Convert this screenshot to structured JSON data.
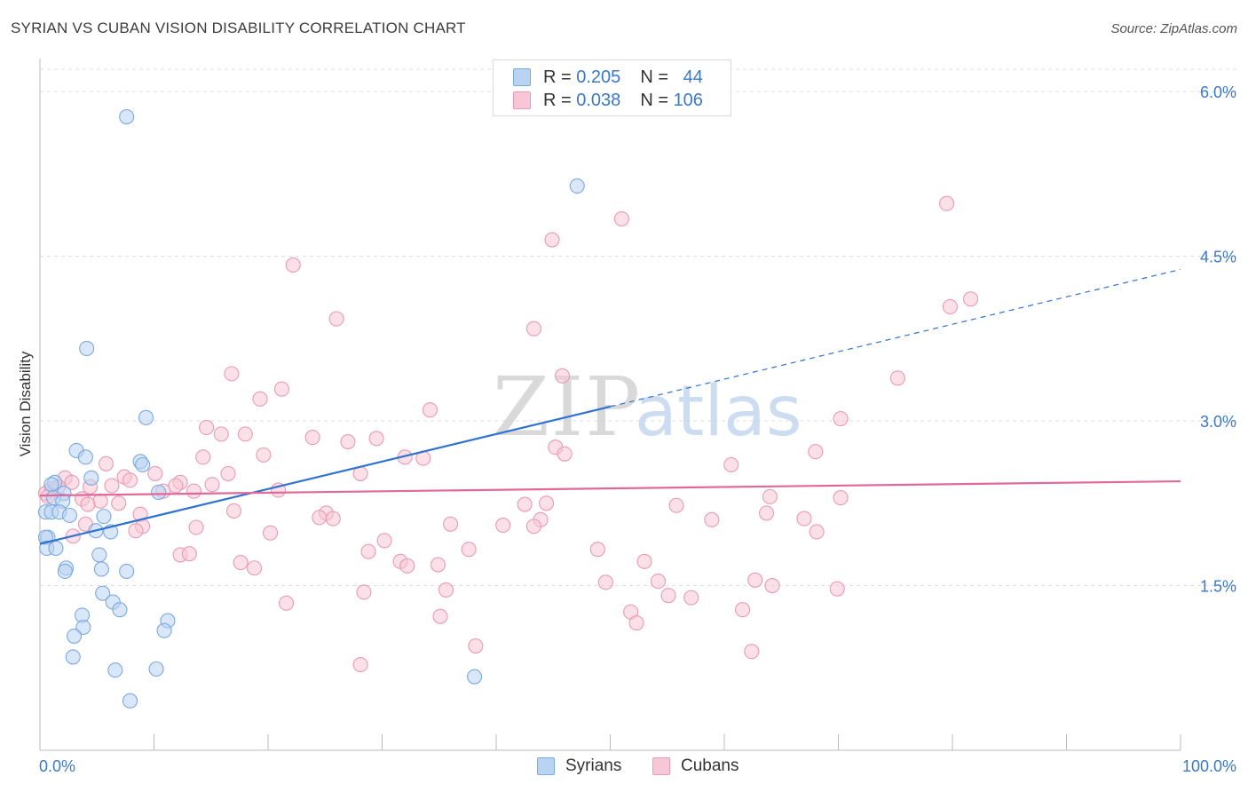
{
  "title": "SYRIAN VS CUBAN VISION DISABILITY CORRELATION CHART",
  "source": "Source: ZipAtlas.com",
  "watermark": {
    "zip": "ZIP",
    "atlas": "atlas"
  },
  "legend": {
    "rows": [
      {
        "r_label": "R =",
        "r_value": "0.205",
        "n_label": "N =",
        "n_value": "44"
      },
      {
        "r_label": "R =",
        "r_value": "0.038",
        "n_label": "N =",
        "n_value": "106"
      }
    ]
  },
  "bottom_legend": {
    "syrians": "Syrians",
    "cubans": "Cubans"
  },
  "colors": {
    "syrians_fill": "#b9d3f3",
    "syrians_stroke": "#7aa9e0",
    "syrians_line": "#2f73d0",
    "cubans_fill": "#f8c6d6",
    "cubans_stroke": "#e99ab5",
    "cubans_line": "#e0699a",
    "tick_label": "#3a78c9",
    "grid": "#dddddd"
  },
  "chart_data": {
    "type": "scatter",
    "title": "SYRIAN VS CUBAN VISION DISABILITY CORRELATION CHART",
    "xlabel": "",
    "ylabel": "Vision Disability",
    "xlim": [
      0,
      100
    ],
    "ylim": [
      0,
      6.3
    ],
    "x_tick_labels": {
      "left": "0.0%",
      "right": "100.0%"
    },
    "y_ticks": [
      {
        "value": 1.5,
        "label": "1.5%"
      },
      {
        "value": 3.0,
        "label": "3.0%"
      },
      {
        "value": 4.5,
        "label": "4.5%"
      },
      {
        "value": 6.0,
        "label": "6.0%"
      }
    ],
    "grid": true,
    "series": [
      {
        "name": "Syrians",
        "r": 0.205,
        "n": 44,
        "trend": {
          "x0": 0,
          "y0": 1.88,
          "x_solid_end": 50,
          "x1": 100,
          "y1": 4.38
        },
        "points": [
          [
            7.6,
            5.77
          ],
          [
            47.1,
            5.14
          ],
          [
            4.1,
            3.66
          ],
          [
            9.3,
            3.03
          ],
          [
            3.2,
            2.73
          ],
          [
            4.0,
            2.67
          ],
          [
            8.8,
            2.63
          ],
          [
            9.0,
            2.6
          ],
          [
            4.5,
            2.48
          ],
          [
            1.3,
            2.44
          ],
          [
            1.0,
            2.42
          ],
          [
            2.1,
            2.34
          ],
          [
            1.2,
            2.3
          ],
          [
            2.0,
            2.27
          ],
          [
            10.4,
            2.35
          ],
          [
            0.5,
            2.17
          ],
          [
            1.0,
            2.17
          ],
          [
            1.7,
            2.17
          ],
          [
            2.6,
            2.14
          ],
          [
            5.6,
            2.13
          ],
          [
            4.9,
            2.0
          ],
          [
            6.2,
            1.99
          ],
          [
            0.7,
            1.94
          ],
          [
            0.5,
            1.94
          ],
          [
            0.6,
            1.84
          ],
          [
            1.4,
            1.84
          ],
          [
            5.2,
            1.78
          ],
          [
            2.3,
            1.66
          ],
          [
            2.2,
            1.63
          ],
          [
            5.4,
            1.65
          ],
          [
            7.6,
            1.63
          ],
          [
            5.5,
            1.43
          ],
          [
            6.4,
            1.35
          ],
          [
            7.0,
            1.28
          ],
          [
            3.7,
            1.23
          ],
          [
            11.2,
            1.18
          ],
          [
            3.8,
            1.12
          ],
          [
            10.9,
            1.09
          ],
          [
            3.0,
            1.04
          ],
          [
            2.9,
            0.85
          ],
          [
            6.6,
            0.73
          ],
          [
            10.2,
            0.74
          ],
          [
            38.1,
            0.67
          ],
          [
            7.9,
            0.45
          ]
        ]
      },
      {
        "name": "Cubans",
        "r": 0.038,
        "n": 106,
        "trend": {
          "x0": 0,
          "y0": 2.32,
          "x1": 100,
          "y1": 2.45
        },
        "points": [
          [
            79.5,
            4.98
          ],
          [
            51.0,
            4.84
          ],
          [
            44.9,
            4.65
          ],
          [
            22.2,
            4.42
          ],
          [
            81.6,
            4.11
          ],
          [
            79.8,
            4.04
          ],
          [
            26.0,
            3.93
          ],
          [
            43.3,
            3.84
          ],
          [
            16.8,
            3.43
          ],
          [
            45.8,
            3.41
          ],
          [
            75.2,
            3.39
          ],
          [
            21.2,
            3.29
          ],
          [
            19.3,
            3.2
          ],
          [
            34.2,
            3.1
          ],
          [
            70.2,
            3.02
          ],
          [
            15.9,
            2.88
          ],
          [
            18.0,
            2.88
          ],
          [
            14.6,
            2.94
          ],
          [
            23.9,
            2.85
          ],
          [
            27.0,
            2.81
          ],
          [
            29.5,
            2.84
          ],
          [
            45.2,
            2.76
          ],
          [
            46.0,
            2.7
          ],
          [
            68.0,
            2.72
          ],
          [
            19.6,
            2.69
          ],
          [
            32.0,
            2.67
          ],
          [
            33.6,
            2.66
          ],
          [
            14.3,
            2.67
          ],
          [
            5.8,
            2.61
          ],
          [
            6.3,
            2.41
          ],
          [
            60.6,
            2.6
          ],
          [
            28.1,
            2.52
          ],
          [
            16.5,
            2.52
          ],
          [
            10.1,
            2.52
          ],
          [
            7.4,
            2.49
          ],
          [
            2.2,
            2.48
          ],
          [
            2.8,
            2.44
          ],
          [
            7.9,
            2.46
          ],
          [
            12.3,
            2.44
          ],
          [
            15.1,
            2.42
          ],
          [
            11.9,
            2.41
          ],
          [
            4.4,
            2.4
          ],
          [
            3.7,
            2.29
          ],
          [
            1.0,
            2.38
          ],
          [
            0.5,
            2.34
          ],
          [
            0.7,
            2.31
          ],
          [
            1.6,
            2.4
          ],
          [
            20.9,
            2.37
          ],
          [
            13.5,
            2.36
          ],
          [
            10.8,
            2.36
          ],
          [
            5.3,
            2.27
          ],
          [
            6.9,
            2.25
          ],
          [
            4.2,
            2.24
          ],
          [
            44.4,
            2.25
          ],
          [
            42.5,
            2.24
          ],
          [
            55.8,
            2.23
          ],
          [
            64.0,
            2.31
          ],
          [
            70.2,
            2.3
          ],
          [
            17.0,
            2.18
          ],
          [
            8.8,
            2.15
          ],
          [
            25.1,
            2.16
          ],
          [
            24.5,
            2.12
          ],
          [
            25.7,
            2.11
          ],
          [
            36.0,
            2.06
          ],
          [
            40.6,
            2.05
          ],
          [
            43.9,
            2.1
          ],
          [
            43.3,
            2.04
          ],
          [
            58.9,
            2.1
          ],
          [
            63.7,
            2.16
          ],
          [
            67.0,
            2.11
          ],
          [
            9.0,
            2.04
          ],
          [
            8.4,
            2.0
          ],
          [
            13.7,
            2.03
          ],
          [
            20.2,
            1.98
          ],
          [
            30.2,
            1.91
          ],
          [
            28.8,
            1.81
          ],
          [
            37.6,
            1.83
          ],
          [
            48.9,
            1.83
          ],
          [
            68.1,
            1.99
          ],
          [
            12.3,
            1.78
          ],
          [
            13.1,
            1.79
          ],
          [
            17.6,
            1.71
          ],
          [
            18.8,
            1.66
          ],
          [
            31.6,
            1.72
          ],
          [
            32.2,
            1.68
          ],
          [
            34.9,
            1.69
          ],
          [
            53.0,
            1.72
          ],
          [
            49.6,
            1.53
          ],
          [
            54.2,
            1.54
          ],
          [
            62.7,
            1.55
          ],
          [
            64.2,
            1.5
          ],
          [
            69.9,
            1.47
          ],
          [
            28.4,
            1.44
          ],
          [
            35.6,
            1.46
          ],
          [
            55.1,
            1.41
          ],
          [
            57.1,
            1.39
          ],
          [
            21.6,
            1.34
          ],
          [
            61.6,
            1.28
          ],
          [
            51.8,
            1.26
          ],
          [
            52.3,
            1.16
          ],
          [
            35.1,
            1.22
          ],
          [
            38.2,
            0.95
          ],
          [
            62.4,
            0.9
          ],
          [
            28.1,
            0.78
          ],
          [
            4.0,
            2.06
          ],
          [
            2.9,
            1.95
          ]
        ]
      }
    ]
  }
}
